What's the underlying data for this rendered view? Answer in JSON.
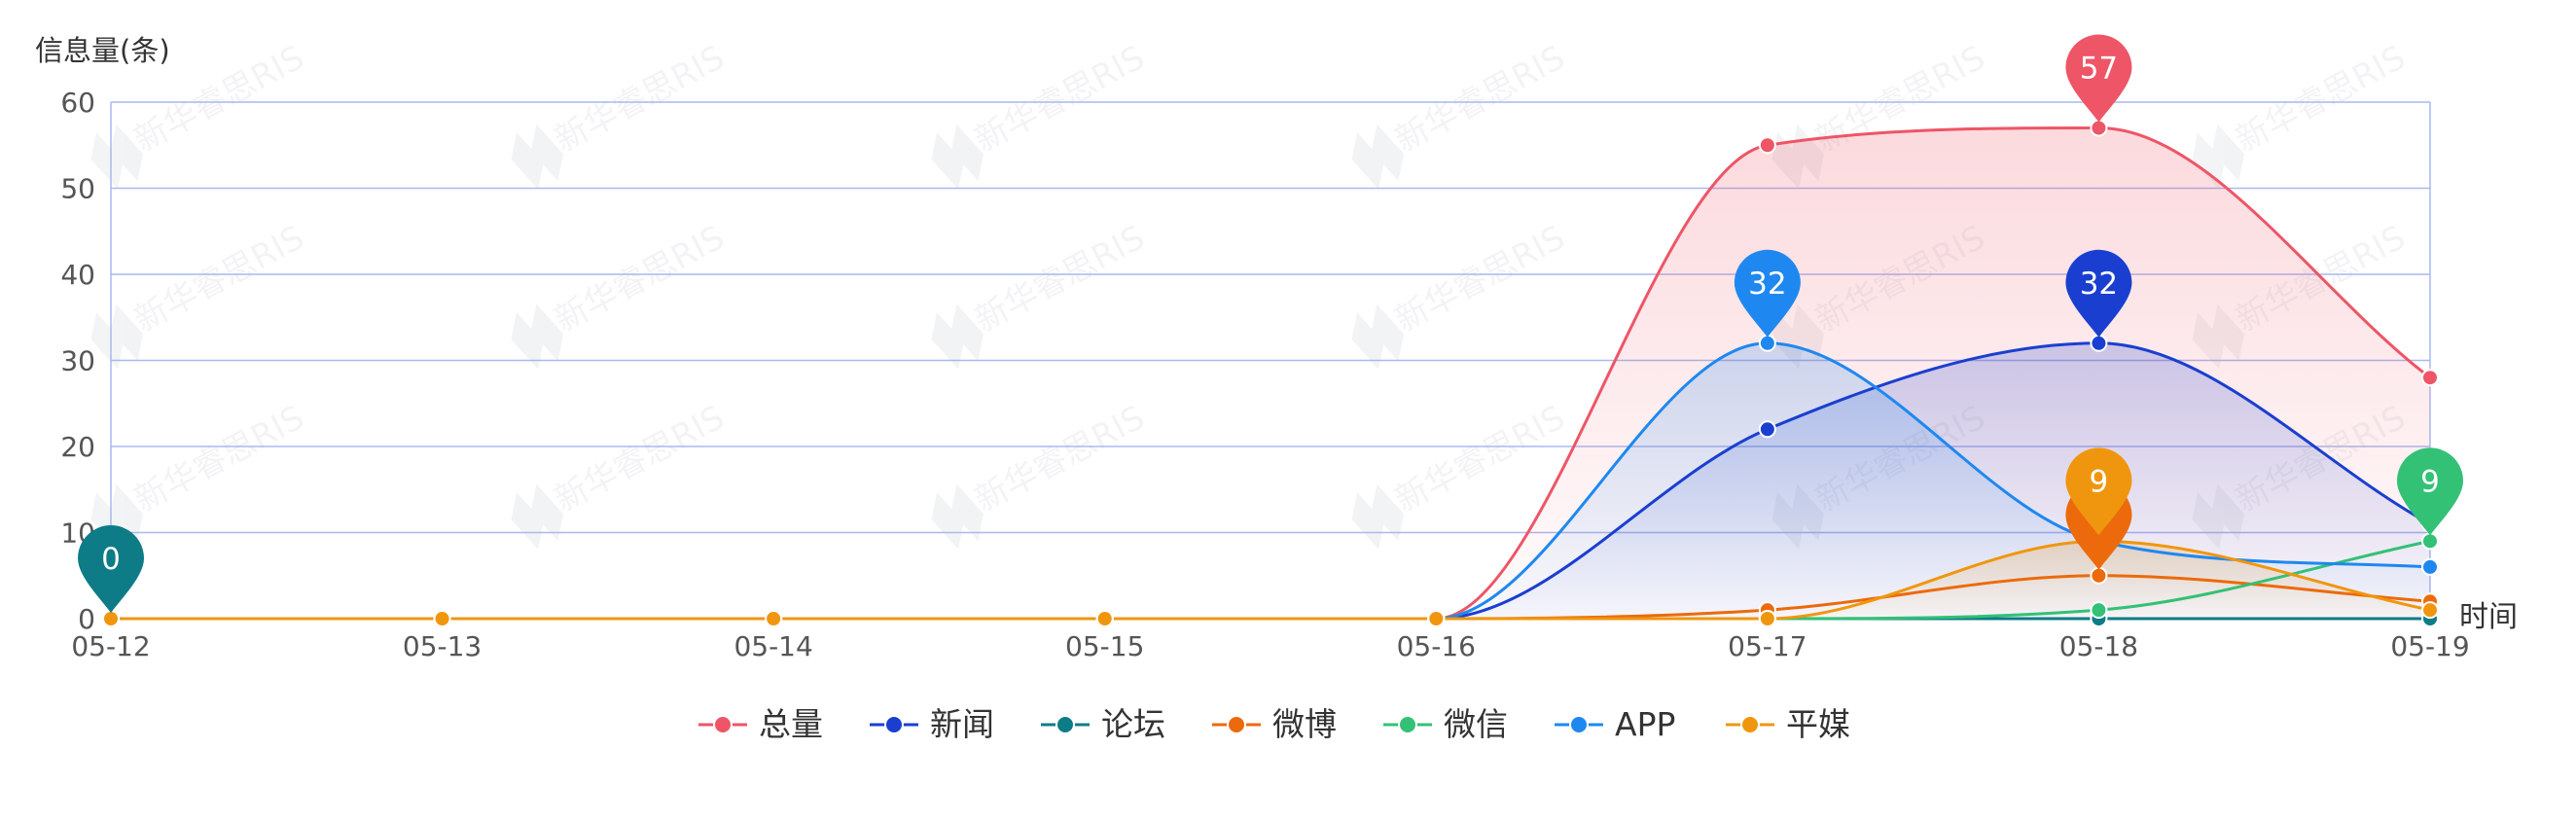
{
  "chart_data": {
    "type": "line",
    "smooth": true,
    "area_fill": true,
    "ylabel": "信息量(条)",
    "xlabel": "时间",
    "ylim": [
      0,
      60
    ],
    "yticks": [
      "0",
      "10",
      "20",
      "30",
      "40",
      "50",
      "60"
    ],
    "categories": [
      "05-12",
      "05-13",
      "05-14",
      "05-15",
      "05-16",
      "05-17",
      "05-18",
      "05-19"
    ],
    "grid": true,
    "legend_position": "bottom",
    "series": [
      {
        "name": "总量",
        "color": "#ee5566",
        "values": [
          0,
          0,
          0,
          0,
          0,
          55,
          57,
          28
        ],
        "fill": true
      },
      {
        "name": "新闻",
        "color": "#1a3fd0",
        "values": [
          0,
          0,
          0,
          0,
          0,
          22,
          32,
          11
        ],
        "fill": true
      },
      {
        "name": "论坛",
        "color": "#0e7c86",
        "values": [
          0,
          0,
          0,
          0,
          0,
          0,
          0,
          0
        ],
        "fill": false
      },
      {
        "name": "微博",
        "color": "#ec6a0b",
        "values": [
          0,
          0,
          0,
          0,
          0,
          1,
          5,
          2
        ],
        "fill": false
      },
      {
        "name": "微信",
        "color": "#33c176",
        "values": [
          0,
          0,
          0,
          0,
          0,
          0,
          1,
          9
        ],
        "fill": false
      },
      {
        "name": "APP",
        "color": "#1e88f0",
        "values": [
          0,
          0,
          0,
          0,
          0,
          32,
          9,
          6
        ],
        "fill": true
      },
      {
        "name": "平媒",
        "color": "#f0960e",
        "values": [
          0,
          0,
          0,
          0,
          0,
          0,
          9,
          1
        ],
        "fill": true
      }
    ],
    "markers": [
      {
        "series": "论坛",
        "x": "05-12",
        "value": 0,
        "label": "0"
      },
      {
        "series": "总量",
        "x": "05-18",
        "value": 57,
        "label": "57"
      },
      {
        "series": "APP",
        "x": "05-17",
        "value": 32,
        "label": "32"
      },
      {
        "series": "新闻",
        "x": "05-18",
        "value": 32,
        "label": "32"
      },
      {
        "series": "微博",
        "x": "05-18",
        "value": 5,
        "label": ""
      },
      {
        "series": "平媒",
        "x": "05-18",
        "value": 9,
        "label": "9"
      },
      {
        "series": "微信",
        "x": "05-19",
        "value": 9,
        "label": "9"
      }
    ],
    "watermark": "新华睿思RIS"
  }
}
